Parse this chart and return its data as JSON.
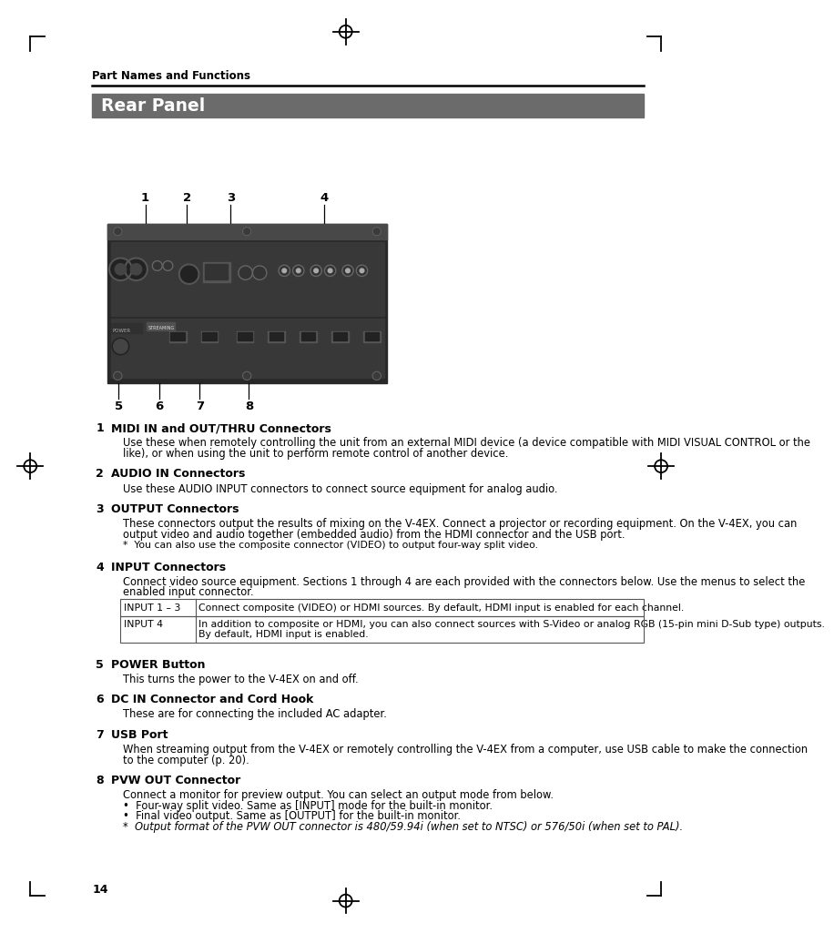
{
  "page_bg": "#ffffff",
  "header_text": "Part Names and Functions",
  "section_title": "Rear Panel",
  "section_title_bg": "#6b6b6b",
  "section_title_color": "#ffffff",
  "items": [
    {
      "num": "1",
      "title": "MIDI IN and OUT/THRU Connectors",
      "body": [
        "Use these when remotely controlling the unit from an external MIDI device (a device compatible with MIDI VISUAL CONTROL or the",
        "like), or when using the unit to perform remote control of another device."
      ]
    },
    {
      "num": "2",
      "title": "AUDIO IN Connectors",
      "body": [
        "Use these AUDIO INPUT connectors to connect source equipment for analog audio."
      ]
    },
    {
      "num": "3",
      "title": "OUTPUT Connectors",
      "body": [
        "These connectors output the results of mixing on the V-4EX. Connect a projector or recording equipment. On the V-4EX, you can",
        "output video and audio together (embedded audio) from the HDMI connector and the USB port."
      ],
      "note": "*  You can also use the composite connector (VIDEO) to output four-way split video."
    },
    {
      "num": "4",
      "title": "INPUT Connectors",
      "body": [
        "Connect video source equipment. Sections 1 through 4 are each provided with the connectors below. Use the menus to select the",
        "enabled input connector."
      ],
      "table": [
        [
          "INPUT 1 – 3",
          "Connect composite (VIDEO) or HDMI sources. By default, HDMI input is enabled for each channel."
        ],
        [
          "INPUT 4",
          "In addition to composite or HDMI, you can also connect sources with S-Video or analog RGB (15-pin mini D-Sub type) outputs.",
          "By default, HDMI input is enabled."
        ]
      ]
    },
    {
      "num": "5",
      "title": "POWER Button",
      "body": [
        "This turns the power to the V-4EX on and off."
      ]
    },
    {
      "num": "6",
      "title": "DC IN Connector and Cord Hook",
      "body": [
        "These are for connecting the included AC adapter."
      ]
    },
    {
      "num": "7",
      "title": "USB Port",
      "body": [
        "When streaming output from the V-4EX or remotely controlling the V-4EX from a computer, use USB cable to make the connection",
        "to the computer (p. 20)."
      ]
    },
    {
      "num": "8",
      "title": "PVW OUT Connector",
      "body": [
        "Connect a monitor for preview output. You can select an output mode from below."
      ],
      "bullets": [
        "•  Four-way split video. Same as [INPUT] mode for the built-in monitor.",
        "•  Final video output. Same as [OUTPUT] for the built-in monitor.",
        "*  Output format of the PVW OUT connector is 480/59.94i (when set to NTSC) or 576/50i (when set to PAL)."
      ]
    }
  ],
  "page_number": "14",
  "image_panel_bg": "#3c3c3c",
  "diagram_labels_top": [
    [
      "1",
      193
    ],
    [
      "2",
      252
    ],
    [
      "3",
      314
    ],
    [
      "4",
      447
    ]
  ],
  "diagram_labels_bottom": [
    [
      "5",
      155
    ],
    [
      "6",
      213
    ],
    [
      "7",
      270
    ],
    [
      "8",
      340
    ]
  ]
}
